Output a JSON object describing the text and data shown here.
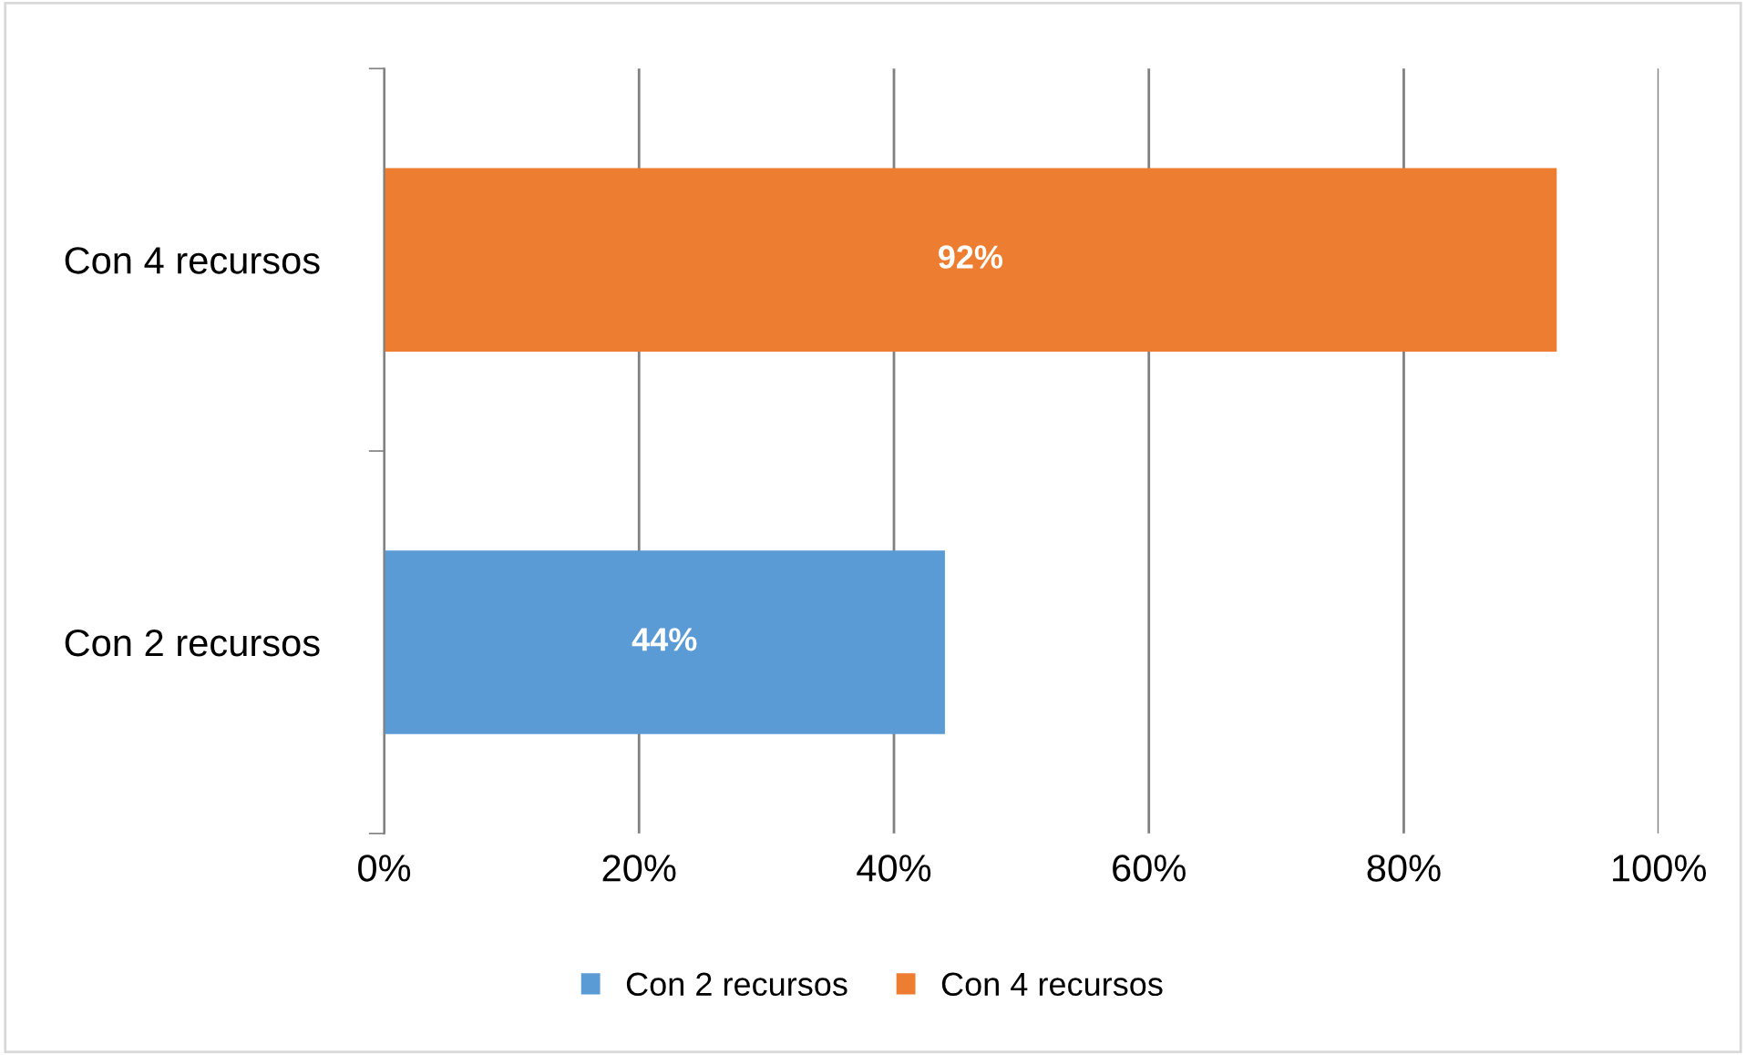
{
  "chart_data": {
    "type": "bar",
    "orientation": "horizontal",
    "categories": [
      "Con 4 recursos",
      "Con 2 recursos"
    ],
    "series": [
      {
        "name": "Con 2 recursos",
        "color": "#5b9bd5",
        "values": [
          null,
          44
        ]
      },
      {
        "name": "Con 4 recursos",
        "color": "#ed7d31",
        "values": [
          92,
          null
        ]
      }
    ],
    "value_labels": [
      [
        "44%"
      ],
      [
        "92%"
      ]
    ],
    "xlim": [
      0,
      100
    ],
    "xticks": [
      {
        "value": 0,
        "label": "0%"
      },
      {
        "value": 20,
        "label": "20%"
      },
      {
        "value": 40,
        "label": "40%"
      },
      {
        "value": 60,
        "label": "60%"
      },
      {
        "value": 80,
        "label": "80%"
      },
      {
        "value": 100,
        "label": "100%"
      }
    ],
    "grid": "x",
    "legend": "bottom"
  }
}
